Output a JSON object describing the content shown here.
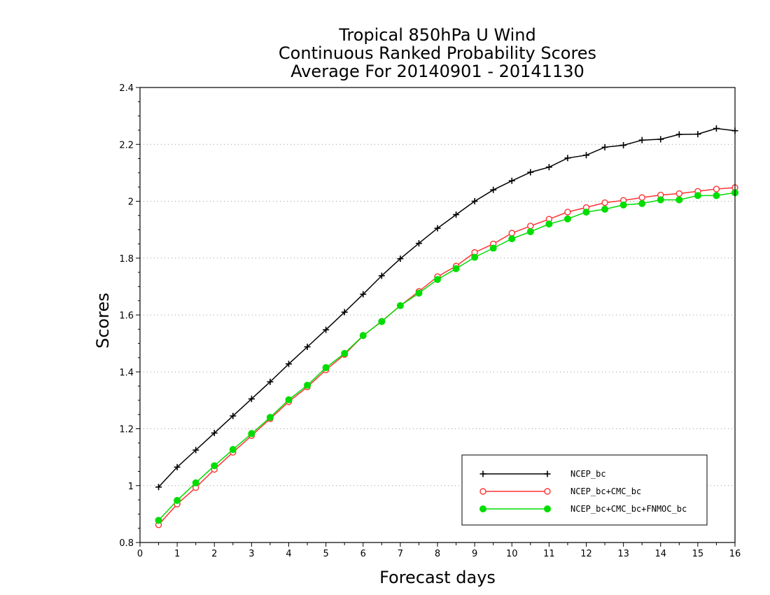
{
  "chart_data": {
    "type": "line",
    "title": [
      "Tropical 850hPa U Wind",
      "Continuous Ranked Probability Scores",
      "Average For 20140901 - 20141130"
    ],
    "xlabel": "Forecast days",
    "ylabel": "Scores",
    "xlim": [
      0,
      16
    ],
    "ylim": [
      0.8,
      2.4
    ],
    "xticks": [
      "0",
      "1",
      "2",
      "3",
      "4",
      "5",
      "6",
      "7",
      "8",
      "9",
      "10",
      "11",
      "12",
      "13",
      "14",
      "15",
      "16"
    ],
    "yticks": [
      "0.8",
      "1",
      "1.2",
      "1.4",
      "1.6",
      "1.8",
      "2",
      "2.2",
      "2.4"
    ],
    "grid": "horizontal dotted",
    "legend_position": "bottom-right",
    "x": [
      0.5,
      1,
      1.5,
      2,
      2.5,
      3,
      3.5,
      4,
      4.5,
      5,
      5.5,
      6,
      6.5,
      7,
      7.5,
      8,
      8.5,
      9,
      9.5,
      10,
      10.5,
      11,
      11.5,
      12,
      12.5,
      13,
      13.5,
      14,
      14.5,
      15,
      15.5,
      16
    ],
    "series": [
      {
        "name": "NCEP_bc",
        "color": "#000000",
        "marker": "plus",
        "values": [
          0.995,
          1.065,
          1.125,
          1.185,
          1.245,
          1.305,
          1.365,
          1.428,
          1.488,
          1.548,
          1.61,
          1.673,
          1.738,
          1.798,
          1.852,
          1.905,
          1.953,
          2.0,
          2.04,
          2.072,
          2.102,
          2.12,
          2.152,
          2.162,
          2.19,
          2.197,
          2.215,
          2.218,
          2.235,
          2.236,
          2.256,
          2.248
        ]
      },
      {
        "name": "NCEP_bc+CMC_bc",
        "color": "#ff3333",
        "marker": "open-circle",
        "values": [
          0.862,
          0.935,
          0.993,
          1.057,
          1.117,
          1.176,
          1.235,
          1.295,
          1.347,
          1.407,
          1.461,
          1.527,
          1.578,
          1.633,
          1.683,
          1.735,
          1.772,
          1.82,
          1.85,
          1.888,
          1.913,
          1.937,
          1.962,
          1.978,
          1.995,
          2.003,
          2.013,
          2.022,
          2.027,
          2.035,
          2.043,
          2.048
        ]
      },
      {
        "name": "NCEP_bc+CMC_bc+FNMOC_bc",
        "color": "#00dd00",
        "marker": "filled-circle",
        "values": [
          0.878,
          0.948,
          1.01,
          1.07,
          1.127,
          1.183,
          1.24,
          1.302,
          1.353,
          1.415,
          1.465,
          1.528,
          1.577,
          1.633,
          1.677,
          1.725,
          1.763,
          1.803,
          1.835,
          1.868,
          1.893,
          1.92,
          1.938,
          1.962,
          1.972,
          1.987,
          1.992,
          2.005,
          2.005,
          2.02,
          2.02,
          2.03
        ]
      }
    ]
  }
}
